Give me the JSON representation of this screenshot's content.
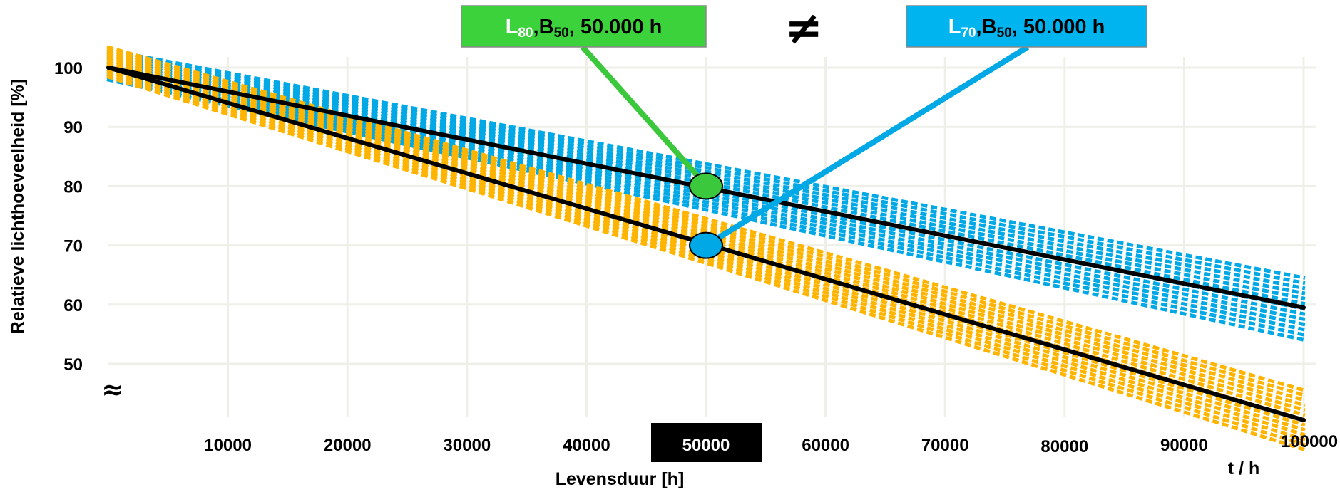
{
  "chart_data": {
    "type": "line",
    "xlabel": "Levensduur [h]",
    "ylabel": "Relatieve lichthoeveelheid [%]",
    "x_unit_label": "t / h",
    "x_ticks": [
      10000,
      20000,
      30000,
      40000,
      50000,
      60000,
      70000,
      80000,
      90000,
      100000
    ],
    "x_tick_labels": [
      "10000",
      "20000",
      "30000",
      "40000",
      "50000",
      "60000",
      "70000",
      "80000",
      "90000",
      "100000"
    ],
    "highlighted_x_tick": "50000",
    "y_ticks": [
      50,
      60,
      70,
      80,
      90,
      100
    ],
    "y_tick_labels": [
      "50",
      "60",
      "70",
      "80",
      "90",
      "100"
    ],
    "axis_break_symbol": "≈",
    "xlim": [
      0,
      102000
    ],
    "ylim": [
      42,
      104
    ],
    "grid": true,
    "series": [
      {
        "color": "#000000",
        "x": [
          0,
          100000
        ],
        "y": [
          100,
          59.5
        ]
      },
      {
        "color": "#000000",
        "x": [
          0,
          100000
        ],
        "y": [
          100,
          40.5
        ]
      }
    ],
    "bands": [
      {
        "color": "#00A9E6",
        "x": [
          0,
          100000
        ],
        "y_low": [
          98,
          54
        ],
        "y_high": [
          103,
          64.5
        ]
      },
      {
        "color": "#FFB400",
        "x": [
          0,
          100000
        ],
        "y_low": [
          98.5,
          35.5
        ],
        "y_high": [
          103.5,
          45.5
        ]
      }
    ],
    "markers": [
      {
        "x": 50000,
        "y": 80,
        "color": "#3CC83C"
      },
      {
        "x": 50000,
        "y": 70,
        "color": "#00A9E6"
      }
    ],
    "callouts": [
      {
        "L": "L",
        "L_sub": "80",
        "B": "B",
        "B_sub": "50",
        "rest": ", 50.000 h",
        "bg_color": "#3CD23C",
        "text_color": "#000000",
        "L_color": "#ffffff",
        "line_color": "#3CC83C"
      },
      {
        "L": "L",
        "L_sub": "70",
        "B": "B",
        "B_sub": "50",
        "rest": ", 50.000 h",
        "bg_color": "#00B4F0",
        "text_color": "#000000",
        "L_color": "#ffffff",
        "line_color": "#00A9E6"
      }
    ],
    "comparison_symbol": "≠"
  }
}
